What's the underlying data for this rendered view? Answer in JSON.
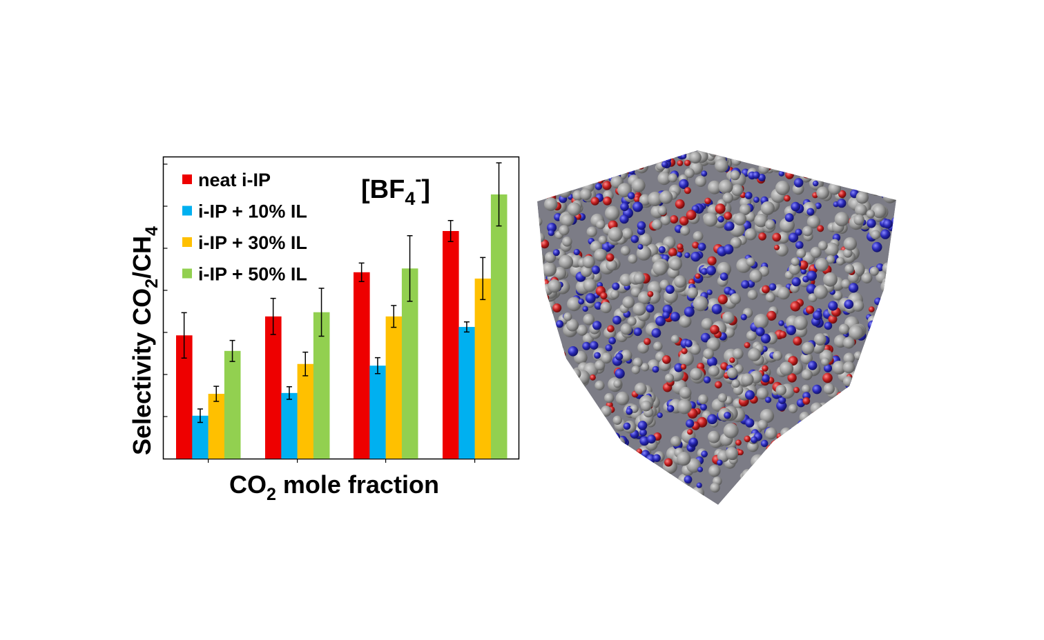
{
  "chart_data": {
    "type": "bar",
    "title": "[BF4-]",
    "annotation": {
      "text": "[BF",
      "sub": "4",
      "sup": "-",
      "close": "]"
    },
    "xlabel": {
      "main": "CO",
      "sub": "2",
      "rest": " mole fraction",
      "full": "CO2 mole fraction"
    },
    "ylabel": {
      "part1": "Selectivity CO",
      "sub1": "2",
      "part2": "/CH",
      "sub2": "4",
      "full": "Selectivity CO2/CH4"
    },
    "categories": [
      "",
      "",
      "",
      ""
    ],
    "x_tick_labels_visible": false,
    "y_tick_labels_visible": false,
    "y_units": "arbitrary (major tick intervals, baseline = 0)",
    "ylim": [
      0,
      7.2
    ],
    "y_ticks": [
      1,
      2,
      3,
      4,
      5,
      6,
      7
    ],
    "grid": false,
    "legend_position": "upper-left inside",
    "series": [
      {
        "name": "neat i-IP",
        "color": "#ee0000",
        "values": [
          2.93,
          3.38,
          4.43,
          5.41
        ],
        "errors": [
          0.54,
          0.43,
          0.22,
          0.25
        ]
      },
      {
        "name": "i-IP + 10% IL",
        "color": "#00b0f0",
        "values": [
          1.02,
          1.56,
          2.21,
          3.13
        ],
        "errors": [
          0.16,
          0.15,
          0.19,
          0.12
        ]
      },
      {
        "name": "i-IP + 30% IL",
        "color": "#ffc000",
        "values": [
          1.54,
          2.25,
          3.38,
          4.28
        ],
        "errors": [
          0.18,
          0.28,
          0.26,
          0.5
        ]
      },
      {
        "name": "i-IP + 50% IL",
        "color": "#92d050",
        "values": [
          2.56,
          3.48,
          4.52,
          6.28
        ],
        "errors": [
          0.25,
          0.57,
          0.78,
          0.75
        ]
      }
    ]
  },
  "legend": {
    "items": [
      {
        "label": "neat i-IP",
        "color": "#ee0000"
      },
      {
        "label": "i-IP + 10% IL",
        "color": "#00b0f0"
      },
      {
        "label": "i-IP + 30% IL",
        "color": "#ffc000"
      },
      {
        "label": "i-IP + 50% IL",
        "color": "#92d050"
      }
    ]
  },
  "simulation_image": {
    "label": "molecular-dynamics-simulation-box",
    "colors": {
      "gray": "#9a9a9a",
      "blue": "#2a2ab0",
      "red": "#c02020"
    }
  }
}
